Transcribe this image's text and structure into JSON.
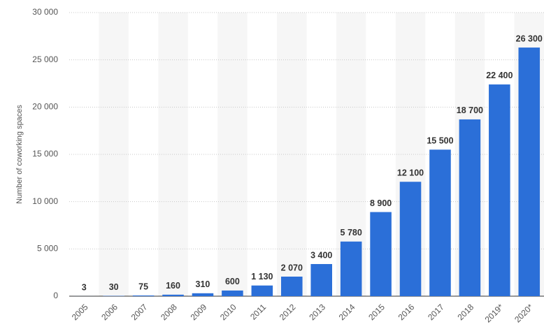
{
  "chart_data": {
    "type": "bar",
    "y_label": "Number of coworking spaces",
    "categories": [
      "2005",
      "2006",
      "2007",
      "2008",
      "2009",
      "2010",
      "2011",
      "2012",
      "2013",
      "2014",
      "2015",
      "2016",
      "2017",
      "2018",
      "2019*",
      "2020*"
    ],
    "values": [
      3,
      30,
      75,
      160,
      310,
      600,
      1130,
      2070,
      3400,
      5780,
      8900,
      12100,
      15500,
      18700,
      22400,
      26300
    ],
    "value_labels": [
      "3",
      "30",
      "75",
      "160",
      "310",
      "600",
      "1 130",
      "2 070",
      "3 400",
      "5 780",
      "8 900",
      "12 100",
      "15 500",
      "18 700",
      "22 400",
      "26 300"
    ],
    "color": "#2b6fd8",
    "ylim": [
      0,
      30000
    ],
    "yticks": [
      {
        "value": 0,
        "label": "0"
      },
      {
        "value": 5000,
        "label": "5 000"
      },
      {
        "value": 10000,
        "label": "10 000"
      },
      {
        "value": 15000,
        "label": "15 000"
      },
      {
        "value": 20000,
        "label": "20 000"
      },
      {
        "value": 25000,
        "label": "25 000"
      },
      {
        "value": 30000,
        "label": "30 000"
      }
    ],
    "grid": true
  }
}
